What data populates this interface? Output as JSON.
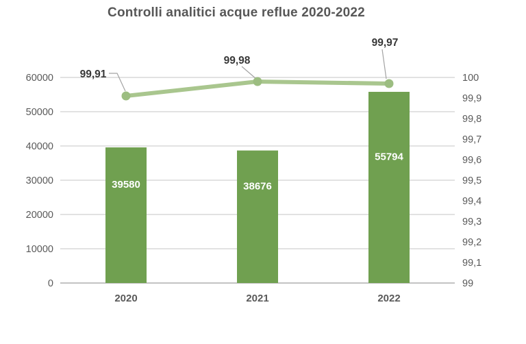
{
  "chart_data": {
    "type": "combo-bar-line",
    "title": "Controlli analitici acque reflue 2020-2022",
    "categories": [
      "2020",
      "2021",
      "2022"
    ],
    "series": [
      {
        "name": "controlli-bar-series",
        "type": "bar",
        "axis": "left",
        "values": [
          39580,
          38676,
          55794
        ],
        "labels": [
          "39580",
          "38676",
          "55794"
        ],
        "color": "#70a050",
        "label_color": "#ffffff"
      },
      {
        "name": "conformita-line-series",
        "type": "line",
        "axis": "right",
        "values": [
          99.91,
          99.98,
          99.97
        ],
        "labels": [
          "99,91",
          "99,98",
          "99,97"
        ],
        "color": "#a9c68e",
        "marker_color": "#9cbd81",
        "label_color": "#383838"
      }
    ],
    "left_axis": {
      "min": 0,
      "max": 60000,
      "step": 10000,
      "tick_labels": [
        "0",
        "10000",
        "20000",
        "30000",
        "40000",
        "50000",
        "60000"
      ]
    },
    "right_axis": {
      "min": 99,
      "max": 100,
      "step": 0.1,
      "tick_labels": [
        "99",
        "99,1",
        "99,2",
        "99,3",
        "99,4",
        "99,5",
        "99,6",
        "99,7",
        "99,8",
        "99,9",
        "100"
      ]
    },
    "grid": true,
    "legend": false,
    "colors": {
      "gridline": "#d9d9d9",
      "axis_line": "#c3c3c3",
      "tick_text": "#595959",
      "category_text": "#595959",
      "leader_line": "#a3a3a3"
    }
  }
}
